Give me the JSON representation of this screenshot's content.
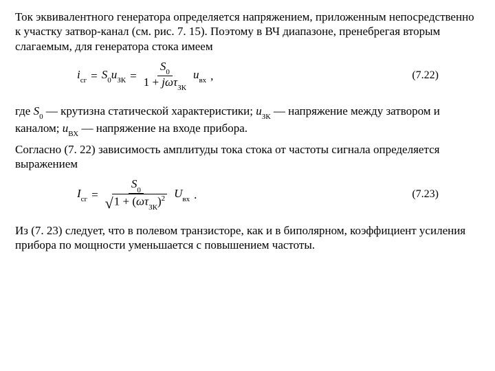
{
  "para1": "Ток эквивалентного генератора определяется напряжением, приложенным непосредственно к участку затвор-канал (см. рис. 7. 15). Поэтому в ВЧ диапазоне, пренебрегая вторым слагаемым, для генератора стока имеем",
  "eq1": {
    "lhs_i": "i",
    "lhs_sub": "сг",
    "S0": "S",
    "zero": "0",
    "u": "u",
    "zk": "ЗК",
    "one": "1",
    "plus": " + ",
    "jw": "jω",
    "tau": "τ",
    "vx": "вх",
    "eq": " = ",
    "comma": " ,",
    "num": "(7.22)"
  },
  "para2_a": "где ",
  "para2_S": "S",
  "para2_0": "0",
  "para2_b": " — крутизна статической характеристики; ",
  "para2_u1": "u",
  "para2_zk": "ЗК",
  "para2_c": " — напряжение между затвором и каналом; ",
  "para2_u2": "u",
  "para2_vx": "ВХ",
  "para2_d": " — напряжение на входе прибора.",
  "para3": "Согласно (7. 22) зависимость амплитуды тока стока от частоты сигнала определяется выражением",
  "eq2": {
    "I": "I",
    "sg": "сг",
    "eq": " = ",
    "S": "S",
    "zero": "0",
    "one": "1",
    "plus": " + (",
    "w": "ω",
    "tau": "τ",
    "zk": "ЗК",
    "close": ")",
    "sq": "2",
    "U": "U",
    "vx": "вх",
    "dot": " .",
    "num": "(7.23)"
  },
  "para4": "Из (7. 23) следует, что в полевом транзисторе, как и в биполярном, коэффициент усиления прибора по мощности уменьшается с повышением частоты."
}
